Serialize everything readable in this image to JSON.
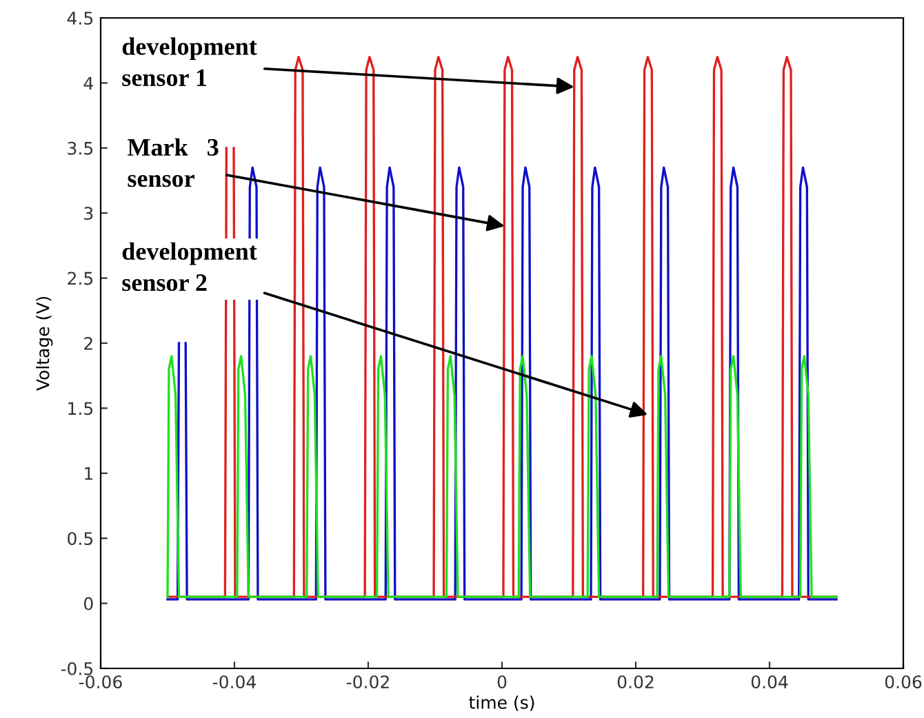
{
  "chart_data": {
    "type": "line",
    "xlabel": "time (s)",
    "ylabel": "Voltage (V)",
    "xlim": [
      -0.06,
      0.06
    ],
    "ylim": [
      -0.5,
      4.5
    ],
    "xticks": [
      -0.06,
      -0.04,
      -0.02,
      0,
      0.02,
      0.04,
      0.06
    ],
    "yticks": [
      -0.5,
      0,
      0.5,
      1,
      1.5,
      2,
      2.5,
      3,
      3.5,
      4,
      4.5
    ],
    "grid": false,
    "legend": false,
    "line_style": "solid",
    "marker": "none",
    "series": [
      {
        "color": "#1010c8",
        "x": [
          -0.05,
          -0.0485,
          -0.0483,
          -0.0479,
          -0.0473,
          -0.0471,
          -0.0379,
          -0.0377,
          -0.0373,
          -0.0367,
          -0.0365,
          -0.0278,
          -0.0276,
          -0.0272,
          -0.0266,
          -0.0264,
          -0.0174,
          -0.0172,
          -0.0168,
          -0.0162,
          -0.016,
          -0.007,
          -0.0068,
          -0.0064,
          -0.0058,
          -0.0056,
          0.0029,
          0.0031,
          0.0035,
          0.0041,
          0.0043,
          0.0133,
          0.0135,
          0.0139,
          0.0145,
          0.0147,
          0.0236,
          0.0238,
          0.0242,
          0.0248,
          0.025,
          0.034,
          0.0342,
          0.0346,
          0.0352,
          0.0354,
          0.0444,
          0.0446,
          0.045,
          0.0456,
          0.0458,
          0.05
        ],
        "values": [
          0.03,
          0.03,
          2.0,
          null,
          2.0,
          0.03,
          0.03,
          3.2,
          3.35,
          3.2,
          0.03,
          0.03,
          3.2,
          3.35,
          3.2,
          0.03,
          0.03,
          3.2,
          3.35,
          3.2,
          0.03,
          0.03,
          3.2,
          3.35,
          3.2,
          0.03,
          0.03,
          3.2,
          3.35,
          3.2,
          0.03,
          0.03,
          3.2,
          3.35,
          3.2,
          0.03,
          0.03,
          3.2,
          3.35,
          3.2,
          0.03,
          0.03,
          3.2,
          3.35,
          3.2,
          0.03,
          0.03,
          3.2,
          3.35,
          3.2,
          0.03,
          0.03
        ]
      },
      {
        "color": "#e02020",
        "x": [
          -0.05,
          -0.0414,
          -0.0412,
          -0.0407,
          -0.0401,
          -0.0399,
          -0.0311,
          -0.0309,
          -0.0304,
          -0.0298,
          -0.0296,
          -0.0205,
          -0.0203,
          -0.0198,
          -0.0192,
          -0.019,
          -0.0102,
          -0.01,
          -0.0095,
          -0.0089,
          -0.0087,
          0.0002,
          0.0004,
          0.0009,
          0.0015,
          0.0017,
          0.0106,
          0.0108,
          0.0113,
          0.0119,
          0.0121,
          0.0211,
          0.0213,
          0.0218,
          0.0224,
          0.0226,
          0.0315,
          0.0317,
          0.0322,
          0.0328,
          0.033,
          0.0419,
          0.0421,
          0.0426,
          0.0432,
          0.0434,
          0.05
        ],
        "values": [
          0.05,
          0.05,
          3.5,
          null,
          3.5,
          0.05,
          0.05,
          4.1,
          4.2,
          4.1,
          0.05,
          0.05,
          4.1,
          4.2,
          4.1,
          0.05,
          0.05,
          4.1,
          4.2,
          4.1,
          0.05,
          0.05,
          4.1,
          4.2,
          4.1,
          0.05,
          0.05,
          4.1,
          4.2,
          4.1,
          0.05,
          0.05,
          4.1,
          4.2,
          4.1,
          0.05,
          0.05,
          4.1,
          4.2,
          4.1,
          0.05,
          0.05,
          4.1,
          4.2,
          4.1,
          0.05,
          0.05
        ]
      },
      {
        "color": "#20e020",
        "x": [
          -0.05,
          -0.0498,
          -0.0494,
          -0.0488,
          -0.0483,
          -0.0396,
          -0.0394,
          -0.039,
          -0.0384,
          -0.0379,
          -0.0292,
          -0.029,
          -0.0286,
          -0.028,
          -0.0275,
          -0.0187,
          -0.0185,
          -0.0181,
          -0.0175,
          -0.017,
          -0.0083,
          -0.0081,
          -0.0077,
          -0.0071,
          -0.0066,
          0.0025,
          0.0027,
          0.0031,
          0.0037,
          0.0042,
          0.0128,
          0.013,
          0.0134,
          0.014,
          0.0145,
          0.0232,
          0.0234,
          0.0238,
          0.0244,
          0.0249,
          0.034,
          0.0342,
          0.0346,
          0.0352,
          0.0357,
          0.0446,
          0.0448,
          0.0452,
          0.0458,
          0.0463,
          0.05
        ],
        "values": [
          0.05,
          1.8,
          1.9,
          1.6,
          0.05,
          0.05,
          1.8,
          1.9,
          1.6,
          0.05,
          0.05,
          1.8,
          1.9,
          1.6,
          0.05,
          0.05,
          1.8,
          1.9,
          1.6,
          0.05,
          0.05,
          1.8,
          1.9,
          1.6,
          0.05,
          0.05,
          1.8,
          1.9,
          1.6,
          0.05,
          0.05,
          1.8,
          1.9,
          1.6,
          0.05,
          0.05,
          1.8,
          1.9,
          1.6,
          0.05,
          0.05,
          1.8,
          1.9,
          1.6,
          0.05,
          0.05,
          1.8,
          1.9,
          1.6,
          0.05,
          0.05
        ]
      }
    ],
    "annotations": [
      {
        "text": "development\nsensor 1",
        "x": 0.0108,
        "y": 3.97
      },
      {
        "text": "Mark   3\nsensor",
        "x": 0.0004,
        "y": 2.9
      },
      {
        "text": "development\nsensor 2",
        "x": 0.0218,
        "y": 1.45
      }
    ]
  }
}
